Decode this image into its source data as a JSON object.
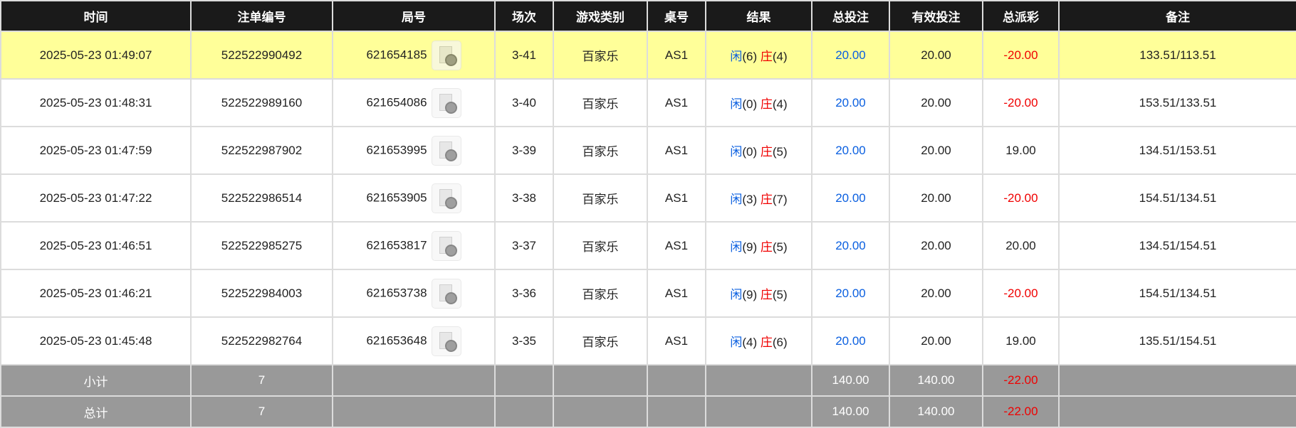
{
  "headers": [
    "时间",
    "注单编号",
    "局号",
    "场次",
    "游戏类别",
    "桌号",
    "结果",
    "总投注",
    "有效投注",
    "总派彩",
    "备注"
  ],
  "rows": [
    {
      "time": "2025-05-23 01:49:07",
      "bet_id": "522522990492",
      "round": "621654185",
      "shoe": "3-41",
      "game": "百家乐",
      "table": "AS1",
      "player": "闲",
      "player_pts": "(6)",
      "banker": "庄",
      "banker_pts": "(4)",
      "total_bet": "20.00",
      "valid_bet": "20.00",
      "payout": "-20.00",
      "payout_neg": true,
      "remark": "133.51/113.51",
      "highlight": true
    },
    {
      "time": "2025-05-23 01:48:31",
      "bet_id": "522522989160",
      "round": "621654086",
      "shoe": "3-40",
      "game": "百家乐",
      "table": "AS1",
      "player": "闲",
      "player_pts": "(0)",
      "banker": "庄",
      "banker_pts": "(4)",
      "total_bet": "20.00",
      "valid_bet": "20.00",
      "payout": "-20.00",
      "payout_neg": true,
      "remark": "153.51/133.51"
    },
    {
      "time": "2025-05-23 01:47:59",
      "bet_id": "522522987902",
      "round": "621653995",
      "shoe": "3-39",
      "game": "百家乐",
      "table": "AS1",
      "player": "闲",
      "player_pts": "(0)",
      "banker": "庄",
      "banker_pts": "(5)",
      "total_bet": "20.00",
      "valid_bet": "20.00",
      "payout": "19.00",
      "payout_neg": false,
      "remark": "134.51/153.51"
    },
    {
      "time": "2025-05-23 01:47:22",
      "bet_id": "522522986514",
      "round": "621653905",
      "shoe": "3-38",
      "game": "百家乐",
      "table": "AS1",
      "player": "闲",
      "player_pts": "(3)",
      "banker": "庄",
      "banker_pts": "(7)",
      "total_bet": "20.00",
      "valid_bet": "20.00",
      "payout": "-20.00",
      "payout_neg": true,
      "remark": "154.51/134.51"
    },
    {
      "time": "2025-05-23 01:46:51",
      "bet_id": "522522985275",
      "round": "621653817",
      "shoe": "3-37",
      "game": "百家乐",
      "table": "AS1",
      "player": "闲",
      "player_pts": "(9)",
      "banker": "庄",
      "banker_pts": "(5)",
      "total_bet": "20.00",
      "valid_bet": "20.00",
      "payout": "20.00",
      "payout_neg": false,
      "remark": "134.51/154.51"
    },
    {
      "time": "2025-05-23 01:46:21",
      "bet_id": "522522984003",
      "round": "621653738",
      "shoe": "3-36",
      "game": "百家乐",
      "table": "AS1",
      "player": "闲",
      "player_pts": "(9)",
      "banker": "庄",
      "banker_pts": "(5)",
      "total_bet": "20.00",
      "valid_bet": "20.00",
      "payout": "-20.00",
      "payout_neg": true,
      "remark": "154.51/134.51"
    },
    {
      "time": "2025-05-23 01:45:48",
      "bet_id": "522522982764",
      "round": "621653648",
      "shoe": "3-35",
      "game": "百家乐",
      "table": "AS1",
      "player": "闲",
      "player_pts": "(4)",
      "banker": "庄",
      "banker_pts": "(6)",
      "total_bet": "20.00",
      "valid_bet": "20.00",
      "payout": "19.00",
      "payout_neg": false,
      "remark": "135.51/154.51"
    }
  ],
  "footer": [
    {
      "label": "小计",
      "count": "7",
      "total_bet": "140.00",
      "valid_bet": "140.00",
      "payout": "-22.00"
    },
    {
      "label": "总计",
      "count": "7",
      "total_bet": "140.00",
      "valid_bet": "140.00",
      "payout": "-22.00"
    }
  ],
  "colors": {
    "header_bg": "#1a1a1a",
    "highlight": "#ffff99",
    "footer_bg": "#999999",
    "player_blue": "#0a5fe0",
    "negative_red": "#f00000"
  }
}
